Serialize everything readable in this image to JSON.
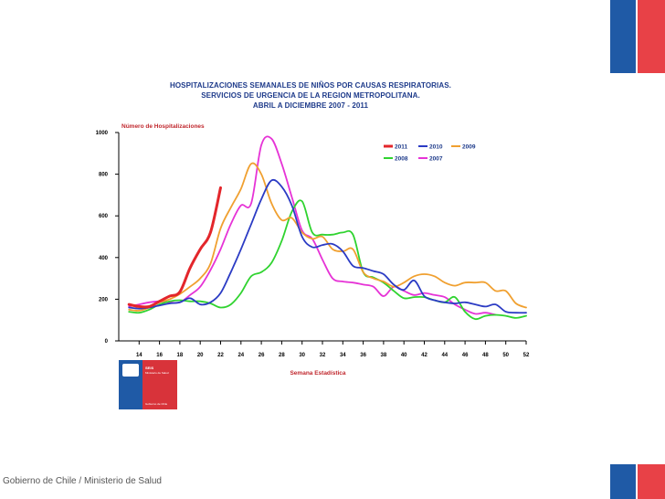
{
  "title_lines": [
    "HOSPITALIZACIONES SEMANALES DE NIÑOS POR CAUSAS RESPIRATORIAS.",
    "SERVICIOS DE URGENCIA DE LA REGION METROPOLITANA.",
    "ABRIL A DICIEMBRE 2007 - 2011"
  ],
  "footer": "Gobierno de Chile / Ministerio de Salud",
  "logo": {
    "line1": "SEIS",
    "line2": "Ministerio de Salud",
    "line3": "Gobierno de Chile"
  },
  "chart_data": {
    "type": "line",
    "ylabel": "Número de Hospitalizaciones",
    "xlabel": "Semana Estadística",
    "xlim": [
      12,
      52
    ],
    "ylim": [
      0,
      1000
    ],
    "xticks": [
      14,
      16,
      18,
      20,
      22,
      24,
      26,
      28,
      30,
      32,
      34,
      36,
      38,
      40,
      42,
      44,
      46,
      48,
      50,
      52
    ],
    "yticks": [
      0,
      200,
      400,
      600,
      800,
      1000
    ],
    "series": [
      {
        "name": "2011",
        "color": "#e3262b",
        "width": 3,
        "x": [
          13,
          14,
          15,
          16,
          17,
          18,
          19,
          20,
          21,
          22
        ],
        "y": [
          175,
          165,
          165,
          190,
          215,
          235,
          350,
          440,
          520,
          735
        ]
      },
      {
        "name": "2010",
        "color": "#2b3bc4",
        "width": 1.8,
        "x": [
          13,
          14,
          15,
          16,
          17,
          18,
          19,
          20,
          21,
          22,
          23,
          24,
          25,
          26,
          27,
          28,
          29,
          30,
          31,
          32,
          33,
          34,
          35,
          36,
          37,
          38,
          39,
          40,
          41,
          42,
          43,
          44,
          45,
          46,
          47,
          48,
          49,
          50,
          51,
          52
        ],
        "y": [
          160,
          155,
          160,
          170,
          180,
          185,
          205,
          175,
          185,
          230,
          330,
          440,
          560,
          680,
          770,
          740,
          650,
          500,
          450,
          460,
          465,
          430,
          360,
          350,
          335,
          320,
          270,
          245,
          290,
          215,
          195,
          185,
          180,
          185,
          175,
          165,
          175,
          140,
          135,
          135
        ]
      },
      {
        "name": "2009",
        "color": "#f0a030",
        "width": 1.8,
        "x": [
          13,
          14,
          15,
          16,
          17,
          18,
          19,
          20,
          21,
          22,
          23,
          24,
          25,
          26,
          27,
          28,
          29,
          30,
          31,
          32,
          33,
          34,
          35,
          36,
          37,
          38,
          39,
          40,
          41,
          42,
          43,
          44,
          45,
          46,
          47,
          48,
          49,
          50,
          51,
          52
        ],
        "y": [
          150,
          145,
          160,
          185,
          200,
          225,
          260,
          300,
          370,
          540,
          640,
          730,
          850,
          800,
          660,
          580,
          590,
          520,
          490,
          500,
          440,
          430,
          440,
          330,
          300,
          285,
          260,
          280,
          310,
          320,
          310,
          280,
          265,
          280,
          280,
          280,
          240,
          240,
          180,
          160
        ]
      },
      {
        "name": "2008",
        "color": "#2fd32f",
        "width": 1.8,
        "x": [
          13,
          14,
          15,
          16,
          17,
          18,
          19,
          20,
          21,
          22,
          23,
          24,
          25,
          26,
          27,
          28,
          29,
          30,
          31,
          32,
          33,
          34,
          35,
          36,
          37,
          38,
          39,
          40,
          41,
          42,
          43,
          44,
          45,
          46,
          47,
          48,
          49,
          50,
          51,
          52
        ],
        "y": [
          140,
          135,
          150,
          175,
          190,
          195,
          190,
          190,
          180,
          160,
          175,
          230,
          310,
          330,
          375,
          480,
          620,
          670,
          520,
          510,
          510,
          520,
          510,
          330,
          305,
          280,
          240,
          205,
          210,
          210,
          195,
          185,
          210,
          140,
          105,
          120,
          125,
          120,
          110,
          120
        ]
      },
      {
        "name": "2007",
        "color": "#e633d6",
        "width": 1.8,
        "x": [
          13,
          14,
          15,
          16,
          17,
          18,
          19,
          20,
          21,
          22,
          23,
          24,
          25,
          26,
          27,
          28,
          29,
          30,
          31,
          32,
          33,
          34,
          35,
          36,
          37,
          38,
          39,
          40,
          41,
          42,
          43,
          44,
          45,
          46,
          47,
          48,
          49
        ],
        "y": [
          165,
          175,
          185,
          190,
          185,
          185,
          220,
          260,
          340,
          440,
          560,
          650,
          660,
          940,
          970,
          850,
          690,
          530,
          490,
          390,
          300,
          285,
          280,
          270,
          260,
          215,
          260,
          240,
          220,
          230,
          220,
          210,
          175,
          150,
          130,
          135,
          125
        ]
      }
    ]
  }
}
